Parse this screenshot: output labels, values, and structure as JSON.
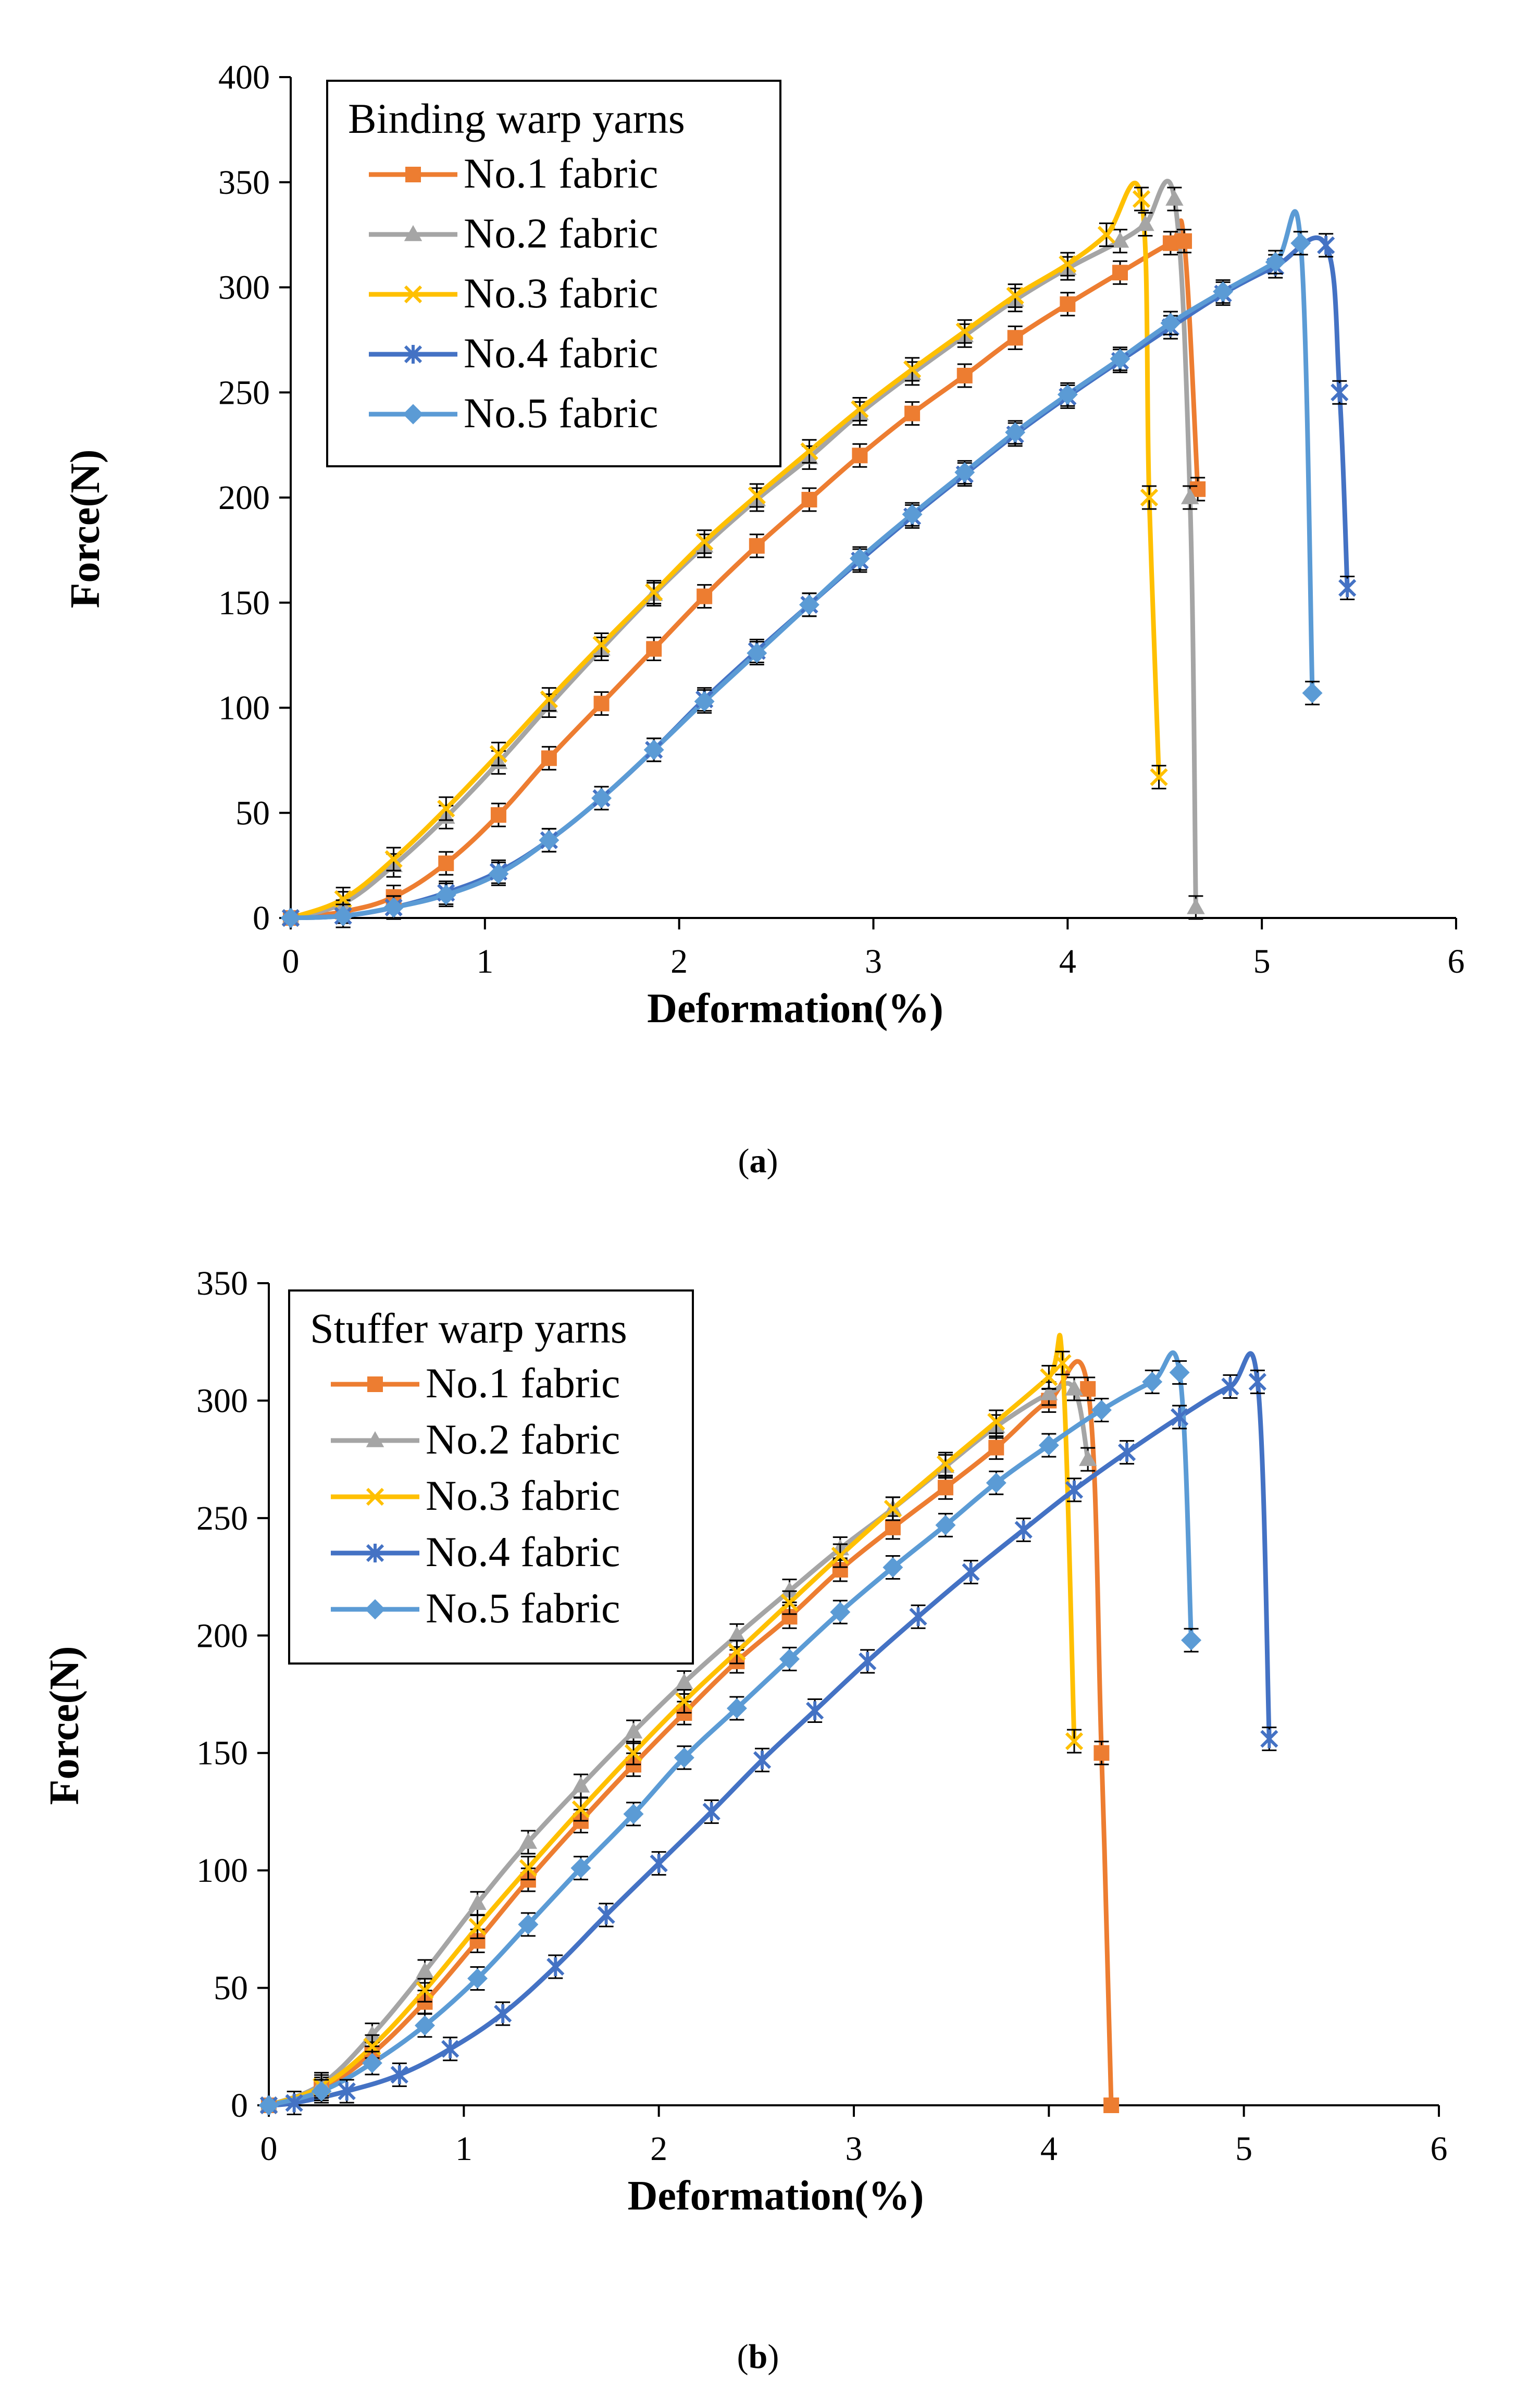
{
  "chart_data": [
    {
      "type": "line",
      "caption": "(a)",
      "caption_letter": "a",
      "legend_title": "Binding warp yarns",
      "xlabel": "Deformation(%)",
      "ylabel": "Force(N)",
      "xlim": [
        0,
        6
      ],
      "ylim": [
        0,
        400
      ],
      "xticks": [
        0,
        1,
        2,
        3,
        4,
        5,
        6
      ],
      "yticks": [
        0,
        50,
        100,
        150,
        200,
        250,
        300,
        350,
        400
      ],
      "series": [
        {
          "name": "No.1 fabric",
          "color": "#ED7D31",
          "marker": "square",
          "x": [
            0,
            0.27,
            0.53,
            0.8,
            1.07,
            1.33,
            1.6,
            1.87,
            2.13,
            2.4,
            2.67,
            2.93,
            3.2,
            3.47,
            3.73,
            4.0,
            4.27,
            4.53,
            4.6,
            4.67
          ],
          "y": [
            0,
            3,
            10,
            26,
            49,
            76,
            102,
            128,
            153,
            177,
            199,
            220,
            240,
            258,
            276,
            292,
            307,
            321,
            322,
            204
          ]
        },
        {
          "name": "No.2 fabric",
          "color": "#A5A5A5",
          "marker": "triangle",
          "x": [
            0,
            0.27,
            0.53,
            0.8,
            1.07,
            1.33,
            1.6,
            1.87,
            2.13,
            2.4,
            2.67,
            2.93,
            3.2,
            3.47,
            3.73,
            4.0,
            4.27,
            4.4,
            4.55,
            4.63,
            4.66
          ],
          "y": [
            0,
            7,
            25,
            48,
            74,
            101,
            128,
            154,
            177,
            199,
            219,
            240,
            259,
            277,
            294,
            309,
            322,
            330,
            342,
            200,
            5
          ]
        },
        {
          "name": "No.3 fabric",
          "color": "#FFC000",
          "marker": "x",
          "x": [
            0,
            0.27,
            0.53,
            0.8,
            1.07,
            1.33,
            1.6,
            1.87,
            2.13,
            2.4,
            2.67,
            2.93,
            3.2,
            3.47,
            3.73,
            4.0,
            4.2,
            4.38,
            4.42,
            4.47
          ],
          "y": [
            0,
            9,
            28,
            52,
            78,
            104,
            130,
            155,
            179,
            201,
            222,
            242,
            261,
            279,
            296,
            311,
            325,
            342,
            200,
            67
          ]
        },
        {
          "name": "No.4 fabric",
          "color": "#4472C4",
          "marker": "star",
          "x": [
            0,
            0.27,
            0.53,
            0.8,
            1.07,
            1.33,
            1.6,
            1.87,
            2.13,
            2.4,
            2.67,
            2.93,
            3.2,
            3.47,
            3.73,
            4.0,
            4.27,
            4.53,
            4.8,
            5.07,
            5.33,
            5.4,
            5.44
          ],
          "y": [
            0,
            1,
            5,
            12,
            22,
            37,
            57,
            80,
            104,
            127,
            149,
            170,
            191,
            211,
            230,
            248,
            265,
            281,
            297,
            310,
            320,
            250,
            157
          ]
        },
        {
          "name": "No.5 fabric",
          "color": "#5B9BD5",
          "marker": "diamond",
          "x": [
            0,
            0.27,
            0.53,
            0.8,
            1.07,
            1.33,
            1.6,
            1.87,
            2.13,
            2.4,
            2.67,
            2.93,
            3.2,
            3.47,
            3.73,
            4.0,
            4.27,
            4.53,
            4.8,
            5.07,
            5.2,
            5.26
          ],
          "y": [
            0,
            1,
            5,
            11,
            21,
            37,
            57,
            80,
            103,
            126,
            149,
            171,
            192,
            212,
            231,
            249,
            266,
            283,
            298,
            312,
            321,
            107
          ]
        }
      ]
    },
    {
      "type": "line",
      "caption": "(b)",
      "caption_letter": "b",
      "legend_title": "Stuffer warp yarns",
      "xlabel": "Deformation(%)",
      "ylabel": "Force(N)",
      "xlim": [
        0,
        6
      ],
      "ylim": [
        0,
        350
      ],
      "xticks": [
        0,
        1,
        2,
        3,
        4,
        5,
        6
      ],
      "yticks": [
        0,
        50,
        100,
        150,
        200,
        250,
        300,
        350
      ],
      "series": [
        {
          "name": "No.1 fabric",
          "color": "#ED7D31",
          "marker": "square",
          "x": [
            0,
            0.27,
            0.53,
            0.8,
            1.07,
            1.33,
            1.6,
            1.87,
            2.13,
            2.4,
            2.67,
            2.93,
            3.2,
            3.47,
            3.73,
            4.0,
            4.2,
            4.27,
            4.32
          ],
          "y": [
            0,
            7,
            22,
            44,
            70,
            96,
            121,
            145,
            167,
            189,
            208,
            228,
            246,
            263,
            280,
            300,
            305,
            150,
            0
          ]
        },
        {
          "name": "No.2 fabric",
          "color": "#A5A5A5",
          "marker": "triangle",
          "x": [
            0,
            0.27,
            0.53,
            0.8,
            1.07,
            1.33,
            1.6,
            1.87,
            2.13,
            2.4,
            2.67,
            2.93,
            3.2,
            3.47,
            3.73,
            4.0,
            4.13,
            4.2
          ],
          "y": [
            0,
            9,
            30,
            57,
            86,
            112,
            136,
            159,
            180,
            200,
            219,
            237,
            254,
            272,
            289,
            303,
            305,
            275
          ]
        },
        {
          "name": "No.3 fabric",
          "color": "#FFC000",
          "marker": "x",
          "x": [
            0,
            0.27,
            0.53,
            0.8,
            1.07,
            1.33,
            1.6,
            1.87,
            2.13,
            2.4,
            2.67,
            2.93,
            3.2,
            3.47,
            3.73,
            4.0,
            4.07,
            4.13
          ],
          "y": [
            0,
            8,
            25,
            49,
            76,
            101,
            126,
            150,
            172,
            193,
            214,
            234,
            254,
            273,
            291,
            310,
            316,
            155
          ]
        },
        {
          "name": "No.4 fabric",
          "color": "#4472C4",
          "marker": "star",
          "x": [
            0,
            0.13,
            0.4,
            0.67,
            0.93,
            1.2,
            1.47,
            1.73,
            2.0,
            2.27,
            2.53,
            2.8,
            3.07,
            3.33,
            3.6,
            3.87,
            4.13,
            4.4,
            4.67,
            4.93,
            5.07,
            5.13
          ],
          "y": [
            0,
            1,
            6,
            13,
            24,
            39,
            59,
            81,
            103,
            125,
            147,
            168,
            189,
            208,
            227,
            245,
            262,
            278,
            293,
            306,
            308,
            156
          ]
        },
        {
          "name": "No.5 fabric",
          "color": "#5B9BD5",
          "marker": "diamond",
          "x": [
            0,
            0.27,
            0.53,
            0.8,
            1.07,
            1.33,
            1.6,
            1.87,
            2.13,
            2.4,
            2.67,
            2.93,
            3.2,
            3.47,
            3.73,
            4.0,
            4.27,
            4.53,
            4.67,
            4.73
          ],
          "y": [
            0,
            6,
            18,
            34,
            54,
            77,
            101,
            124,
            148,
            169,
            190,
            210,
            229,
            247,
            265,
            281,
            296,
            308,
            312,
            198
          ]
        }
      ]
    }
  ]
}
